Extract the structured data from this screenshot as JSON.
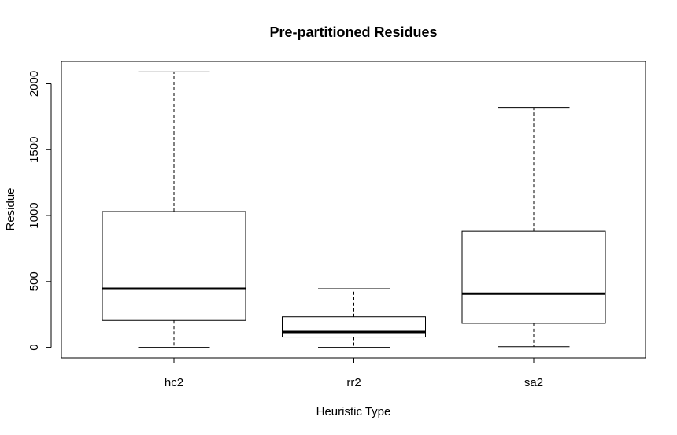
{
  "chart_data": {
    "type": "boxplot",
    "title": "Pre-partitioned Residues",
    "xlabel": "Heuristic Type",
    "ylabel": "Residue",
    "categories": [
      "hc2",
      "rr2",
      "sa2"
    ],
    "yticks": [
      0,
      500,
      1000,
      1500,
      2000
    ],
    "ytick_labels": [
      "0",
      "500",
      "1000",
      "1500",
      "2000"
    ],
    "ylim": [
      -80,
      2170
    ],
    "grid": false,
    "boxes": [
      {
        "category": "hc2",
        "whisker_low": 0,
        "q1": 205,
        "median": 445,
        "q3": 1030,
        "whisker_high": 2090
      },
      {
        "category": "rr2",
        "whisker_low": 0,
        "q1": 78,
        "median": 117,
        "q3": 232,
        "whisker_high": 445
      },
      {
        "category": "sa2",
        "whisker_low": 5,
        "q1": 183,
        "median": 408,
        "q3": 880,
        "whisker_high": 1820
      }
    ]
  }
}
